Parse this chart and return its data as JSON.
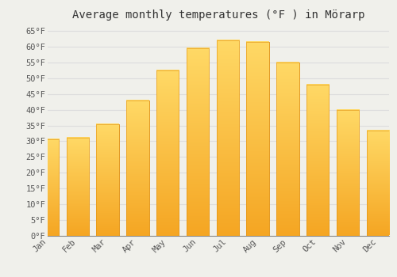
{
  "title": "Average monthly temperatures (°F ) in Mörarp",
  "months": [
    "Jan",
    "Feb",
    "Mar",
    "Apr",
    "May",
    "Jun",
    "Jul",
    "Aug",
    "Sep",
    "Oct",
    "Nov",
    "Dec"
  ],
  "values": [
    30.5,
    31.0,
    35.5,
    43.0,
    52.5,
    59.5,
    62.0,
    61.5,
    55.0,
    48.0,
    40.0,
    33.5
  ],
  "bar_color_bottom": "#F5A623",
  "bar_color_top": "#FFD966",
  "bar_color_edge": "#E09010",
  "background_color": "#F0F0EB",
  "grid_color": "#DDDDDD",
  "ylim": [
    0,
    67
  ],
  "yticks": [
    0,
    5,
    10,
    15,
    20,
    25,
    30,
    35,
    40,
    45,
    50,
    55,
    60,
    65
  ],
  "ytick_labels": [
    "0°F",
    "5°F",
    "10°F",
    "15°F",
    "20°F",
    "25°F",
    "30°F",
    "35°F",
    "40°F",
    "45°F",
    "50°F",
    "55°F",
    "60°F",
    "65°F"
  ],
  "title_fontsize": 10,
  "tick_fontsize": 7.5,
  "font_family": "monospace"
}
